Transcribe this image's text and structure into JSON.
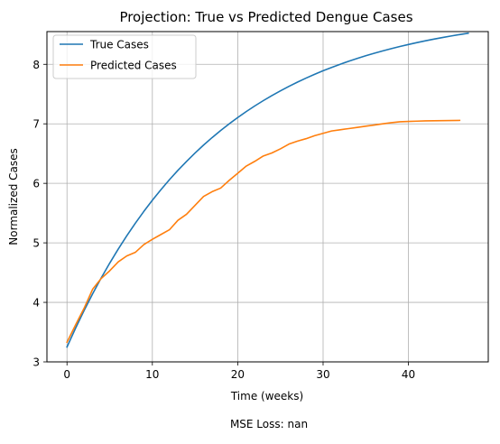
{
  "chart_data": {
    "type": "line",
    "title": "Projection: True vs Predicted Dengue Cases",
    "xlabel": "Time (weeks)",
    "ylabel": "Normalized Cases",
    "xlim": [
      -2.35,
      49.35
    ],
    "ylim": [
      3.0,
      8.55
    ],
    "xticks": [
      0,
      10,
      20,
      30,
      40
    ],
    "xtick_labels": [
      "0",
      "10",
      "20",
      "30",
      "40"
    ],
    "yticks": [
      3,
      4,
      5,
      6,
      7,
      8
    ],
    "ytick_labels": [
      "3",
      "4",
      "5",
      "6",
      "7",
      "8"
    ],
    "grid": true,
    "legend_position": "upper-left",
    "footer_text": "MSE Loss: nan",
    "series": [
      {
        "name": "True Cases",
        "color": "#1f77b4",
        "x": [
          0,
          1,
          2,
          3,
          4,
          5,
          6,
          7,
          8,
          9,
          10,
          11,
          12,
          13,
          14,
          15,
          16,
          17,
          18,
          19,
          20,
          21,
          22,
          23,
          24,
          25,
          26,
          27,
          28,
          29,
          30,
          31,
          32,
          33,
          34,
          35,
          36,
          37,
          38,
          39,
          40,
          41,
          42,
          43,
          44,
          45,
          46,
          47
        ],
        "y": [
          3.25,
          3.565,
          3.862,
          4.143,
          4.408,
          4.658,
          4.895,
          5.118,
          5.329,
          5.528,
          5.716,
          5.893,
          6.061,
          6.219,
          6.368,
          6.509,
          6.643,
          6.769,
          6.888,
          7.0,
          7.106,
          7.206,
          7.301,
          7.39,
          7.475,
          7.554,
          7.63,
          7.701,
          7.768,
          7.832,
          7.892,
          7.948,
          8.001,
          8.052,
          8.099,
          8.144,
          8.186,
          8.226,
          8.264,
          8.3,
          8.333,
          8.365,
          8.395,
          8.424,
          8.451,
          8.476,
          8.5,
          8.523
        ]
      },
      {
        "name": "Predicted Cases",
        "color": "#ff7f0e",
        "x": [
          0,
          1,
          2,
          3,
          4,
          5,
          6,
          7,
          8,
          9,
          10,
          11,
          12,
          13,
          14,
          15,
          16,
          17,
          18,
          19,
          20,
          21,
          22,
          23,
          24,
          25,
          26,
          27,
          28,
          29,
          30,
          31,
          32,
          33,
          34,
          35,
          36,
          37,
          38,
          39,
          40,
          41,
          42,
          43,
          44,
          45,
          46
        ],
        "y": [
          3.33,
          3.62,
          3.9,
          4.22,
          4.4,
          4.53,
          4.68,
          4.78,
          4.84,
          4.97,
          5.06,
          5.14,
          5.22,
          5.38,
          5.48,
          5.63,
          5.78,
          5.86,
          5.92,
          6.05,
          6.17,
          6.29,
          6.37,
          6.46,
          6.51,
          6.58,
          6.66,
          6.71,
          6.75,
          6.8,
          6.84,
          6.88,
          6.9,
          6.92,
          6.94,
          6.96,
          6.98,
          7.0,
          7.02,
          7.035,
          7.04,
          7.045,
          7.05,
          7.052,
          7.054,
          7.056,
          7.058
        ]
      }
    ]
  }
}
